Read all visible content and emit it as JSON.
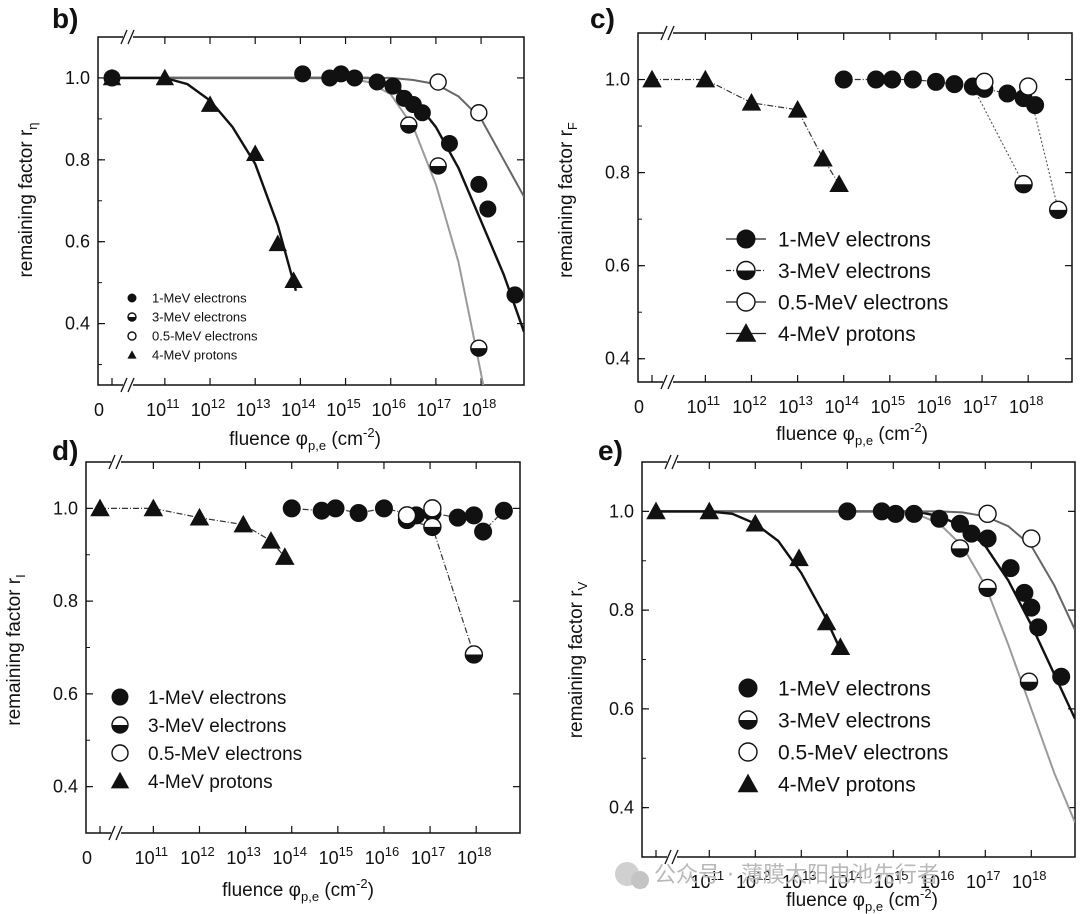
{
  "watermark": "公众号 · 薄膜太阳电池先行者",
  "chart_data": [
    {
      "panel": "b)",
      "type": "scatter",
      "ylabel_main": "remaining factor r",
      "ylabel_sub": "η",
      "xlabel": "fluence φ",
      "xlabel_sub": "p,e",
      "xlabel_unit": "(cm",
      "xlabel_exp": "-2",
      "x_scale": "log with break at 0",
      "xlim_exp": [
        10.45,
        18.95
      ],
      "ylim": [
        0.25,
        1.1
      ],
      "x_ticks": [
        "10",
        "11",
        "12",
        "13",
        "14",
        "15",
        "16",
        "17",
        "18"
      ],
      "y_ticks": [
        "1.0",
        "0.8",
        "0.6",
        "0.4"
      ],
      "y_tick_values": [
        1.0,
        0.8,
        0.6,
        0.4
      ],
      "legend": {
        "position": "bottom-left",
        "entries": [
          "1-MeV electrons",
          "3-MeV electrons",
          "0.5-MeV electrons",
          "4-MeV protons"
        ]
      },
      "series": [
        {
          "marker": "filled-circle",
          "name": "1-MeV electrons",
          "points": [
            [
              0,
              1.0
            ],
            [
              14.05,
              1.01
            ],
            [
              14.65,
              1.0
            ],
            [
              14.9,
              1.01
            ],
            [
              15.2,
              1.0
            ],
            [
              15.7,
              0.99
            ],
            [
              16.05,
              0.98
            ],
            [
              16.3,
              0.95
            ],
            [
              16.5,
              0.935
            ],
            [
              16.7,
              0.915
            ],
            [
              17.3,
              0.84
            ],
            [
              17.95,
              0.74
            ],
            [
              18.15,
              0.68
            ],
            [
              18.75,
              0.47
            ]
          ],
          "fit": [
            [
              15.5,
              1.0
            ],
            [
              16.0,
              0.985
            ],
            [
              16.5,
              0.95
            ],
            [
              17.0,
              0.88
            ],
            [
              17.5,
              0.78
            ],
            [
              18.0,
              0.65
            ],
            [
              18.5,
              0.52
            ],
            [
              18.95,
              0.38
            ]
          ]
        },
        {
          "marker": "half-circle",
          "name": "3-MeV electrons",
          "points": [
            [
              16.4,
              0.885
            ],
            [
              17.05,
              0.785
            ],
            [
              17.95,
              0.34
            ]
          ],
          "fit": [
            [
              15.0,
              1.0
            ],
            [
              15.5,
              0.99
            ],
            [
              16.0,
              0.96
            ],
            [
              16.5,
              0.88
            ],
            [
              17.0,
              0.74
            ],
            [
              17.5,
              0.55
            ],
            [
              17.85,
              0.36
            ],
            [
              18.05,
              0.25
            ]
          ]
        },
        {
          "marker": "open-circle",
          "name": "0.5-MeV electrons",
          "points": [
            [
              17.05,
              0.99
            ],
            [
              17.95,
              0.915
            ]
          ],
          "fit": [
            [
              16.0,
              1.0
            ],
            [
              16.5,
              0.995
            ],
            [
              17.0,
              0.985
            ],
            [
              17.5,
              0.955
            ],
            [
              18.0,
              0.9
            ],
            [
              18.5,
              0.8
            ],
            [
              18.95,
              0.71
            ]
          ]
        },
        {
          "marker": "triangle",
          "name": "4-MeV protons",
          "points": [
            [
              0,
              1.0
            ],
            [
              11.0,
              1.0
            ],
            [
              12.0,
              0.935
            ],
            [
              13.0,
              0.815
            ],
            [
              13.5,
              0.595
            ],
            [
              13.85,
              0.505
            ]
          ],
          "fit": [
            [
              11.0,
              1.0
            ],
            [
              11.5,
              0.985
            ],
            [
              12.0,
              0.945
            ],
            [
              12.5,
              0.88
            ],
            [
              13.0,
              0.79
            ],
            [
              13.5,
              0.64
            ],
            [
              13.9,
              0.48
            ]
          ]
        }
      ]
    },
    {
      "panel": "c)",
      "type": "scatter",
      "ylabel_main": "remaining factor r",
      "ylabel_sub": "F",
      "xlabel": "fluence φ",
      "xlabel_sub": "p,e",
      "xlabel_unit": "(cm",
      "xlabel_exp": "-2",
      "x_scale": "log with break at 0",
      "xlim_exp": [
        10.45,
        18.95
      ],
      "ylim": [
        0.35,
        1.1
      ],
      "x_ticks": [
        "10",
        "11",
        "12",
        "13",
        "14",
        "15",
        "16",
        "17",
        "18"
      ],
      "y_ticks": [
        "1.0",
        "0.8",
        "0.6",
        "0.4"
      ],
      "y_tick_values": [
        1.0,
        0.8,
        0.6,
        0.4
      ],
      "legend": {
        "position": "center-left",
        "entries": [
          "1-MeV electrons",
          "3-MeV electrons",
          "0.5-MeV electrons",
          "4-MeV protons"
        ]
      },
      "series": [
        {
          "marker": "filled-circle",
          "name": "1-MeV electrons",
          "points": [
            [
              14.0,
              1.0
            ],
            [
              14.7,
              1.0
            ],
            [
              15.05,
              1.0
            ],
            [
              15.5,
              1.0
            ],
            [
              16.0,
              0.995
            ],
            [
              16.4,
              0.99
            ],
            [
              16.8,
              0.985
            ],
            [
              17.05,
              0.98
            ],
            [
              17.55,
              0.97
            ],
            [
              17.9,
              0.96
            ],
            [
              18.15,
              0.945
            ]
          ],
          "connect": true
        },
        {
          "marker": "half-circle",
          "name": "3-MeV electrons",
          "points": [
            [
              17.9,
              0.775
            ],
            [
              18.65,
              0.72
            ]
          ],
          "connect": false
        },
        {
          "marker": "open-circle",
          "name": "0.5-MeV electrons",
          "points": [
            [
              17.05,
              0.995
            ],
            [
              18.0,
              0.985
            ]
          ],
          "connect": false
        },
        {
          "marker": "triangle",
          "name": "4-MeV protons",
          "points": [
            [
              0,
              1.0
            ],
            [
              11.0,
              1.0
            ],
            [
              12.0,
              0.95
            ],
            [
              13.0,
              0.935
            ],
            [
              13.55,
              0.83
            ],
            [
              13.9,
              0.775
            ]
          ],
          "connect": true
        },
        {
          "marker": "dotted-line",
          "points": [
            [
              16.8,
              0.985
            ],
            [
              17.9,
              0.775
            ]
          ]
        },
        {
          "marker": "dotted-line",
          "points": [
            [
              18.0,
              0.985
            ],
            [
              18.65,
              0.72
            ]
          ]
        }
      ]
    },
    {
      "panel": "d)",
      "type": "scatter",
      "ylabel_main": "remaining factor r",
      "ylabel_sub": "I",
      "xlabel": "fluence φ",
      "xlabel_sub": "p,e",
      "xlabel_unit": "(cm",
      "xlabel_exp": "-2",
      "x_scale": "log with break at 0",
      "xlim_exp": [
        10.45,
        18.95
      ],
      "ylim": [
        0.3,
        1.1
      ],
      "x_ticks": [
        "10",
        "11",
        "12",
        "13",
        "14",
        "15",
        "16",
        "17",
        "18"
      ],
      "y_ticks": [
        "1.0",
        "0.8",
        "0.6",
        "0.4"
      ],
      "y_tick_values": [
        1.0,
        0.8,
        0.6,
        0.4
      ],
      "legend": {
        "position": "bottom-left",
        "entries": [
          "1-MeV electrons",
          "3-MeV electrons",
          "0.5-MeV electrons",
          "4-MeV protons"
        ]
      },
      "series": [
        {
          "marker": "filled-circle",
          "name": "1-MeV electrons",
          "points": [
            [
              14.0,
              1.0
            ],
            [
              14.65,
              0.995
            ],
            [
              14.95,
              1.0
            ],
            [
              15.45,
              0.99
            ],
            [
              16.0,
              1.0
            ],
            [
              16.7,
              0.985
            ],
            [
              17.05,
              0.99
            ],
            [
              17.6,
              0.98
            ],
            [
              17.95,
              0.985
            ],
            [
              18.15,
              0.95
            ],
            [
              18.6,
              0.995
            ]
          ],
          "connect": true
        },
        {
          "marker": "half-circle",
          "name": "3-MeV electrons",
          "points": [
            [
              16.5,
              0.975
            ],
            [
              17.05,
              0.96
            ],
            [
              17.95,
              0.685
            ]
          ],
          "connect": true
        },
        {
          "marker": "open-circle",
          "name": "0.5-MeV electrons",
          "points": [
            [
              16.5,
              0.985
            ],
            [
              17.05,
              1.0
            ]
          ],
          "connect": false
        },
        {
          "marker": "triangle",
          "name": "4-MeV protons",
          "points": [
            [
              0,
              1.0
            ],
            [
              11.0,
              1.0
            ],
            [
              12.0,
              0.98
            ],
            [
              12.95,
              0.965
            ],
            [
              13.55,
              0.93
            ],
            [
              13.85,
              0.895
            ]
          ],
          "connect": true
        }
      ]
    },
    {
      "panel": "e)",
      "type": "scatter",
      "ylabel_main": "remaining factor r",
      "ylabel_sub": "V",
      "xlabel": "fluence φ",
      "xlabel_sub": "p,e",
      "xlabel_unit": "(cm",
      "xlabel_exp": "-2",
      "x_scale": "log with break at 0",
      "xlim_exp": [
        10.45,
        18.95
      ],
      "ylim": [
        0.3,
        1.1
      ],
      "x_ticks": [
        "10",
        "11",
        "12",
        "13",
        "14",
        "15",
        "16",
        "17",
        "18"
      ],
      "y_ticks": [
        "1.0",
        "0.8",
        "0.6",
        "0.4"
      ],
      "y_tick_values": [
        1.0,
        0.8,
        0.6,
        0.4
      ],
      "legend": {
        "position": "bottom-center",
        "entries": [
          "1-MeV electrons",
          "3-MeV electrons",
          "0.5-MeV electrons",
          "4-MeV protons"
        ]
      },
      "series": [
        {
          "marker": "filled-circle",
          "name": "1-MeV electrons",
          "points": [
            [
              14.0,
              1.0
            ],
            [
              14.75,
              1.0
            ],
            [
              15.05,
              0.995
            ],
            [
              15.45,
              0.995
            ],
            [
              16.0,
              0.985
            ],
            [
              16.45,
              0.975
            ],
            [
              16.7,
              0.955
            ],
            [
              17.05,
              0.945
            ],
            [
              17.55,
              0.885
            ],
            [
              17.85,
              0.835
            ],
            [
              18.0,
              0.805
            ],
            [
              18.15,
              0.765
            ],
            [
              18.65,
              0.665
            ]
          ],
          "fit": [
            [
              15.5,
              1.0
            ],
            [
              16.0,
              0.99
            ],
            [
              16.5,
              0.97
            ],
            [
              17.0,
              0.93
            ],
            [
              17.5,
              0.86
            ],
            [
              18.0,
              0.77
            ],
            [
              18.5,
              0.67
            ],
            [
              18.95,
              0.58
            ]
          ]
        },
        {
          "marker": "half-circle",
          "name": "3-MeV electrons",
          "points": [
            [
              16.45,
              0.925
            ],
            [
              17.05,
              0.845
            ],
            [
              17.95,
              0.655
            ]
          ],
          "fit": [
            [
              15.0,
              1.0
            ],
            [
              15.5,
              0.995
            ],
            [
              16.0,
              0.975
            ],
            [
              16.5,
              0.93
            ],
            [
              17.0,
              0.85
            ],
            [
              17.5,
              0.73
            ],
            [
              18.0,
              0.6
            ],
            [
              18.5,
              0.47
            ],
            [
              18.95,
              0.37
            ]
          ]
        },
        {
          "marker": "open-circle",
          "name": "0.5-MeV electrons",
          "points": [
            [
              17.05,
              0.995
            ],
            [
              18.0,
              0.945
            ]
          ],
          "fit": [
            [
              16.0,
              1.0
            ],
            [
              16.5,
              0.998
            ],
            [
              17.0,
              0.99
            ],
            [
              17.5,
              0.97
            ],
            [
              18.0,
              0.93
            ],
            [
              18.5,
              0.85
            ],
            [
              18.95,
              0.76
            ]
          ]
        },
        {
          "marker": "triangle",
          "name": "4-MeV protons",
          "points": [
            [
              0,
              1.0
            ],
            [
              11.0,
              1.0
            ],
            [
              12.0,
              0.975
            ],
            [
              12.95,
              0.905
            ],
            [
              13.55,
              0.775
            ],
            [
              13.85,
              0.725
            ]
          ],
          "fit": [
            [
              11.0,
              1.0
            ],
            [
              11.5,
              0.995
            ],
            [
              12.0,
              0.975
            ],
            [
              12.5,
              0.94
            ],
            [
              13.0,
              0.875
            ],
            [
              13.5,
              0.79
            ],
            [
              13.9,
              0.71
            ]
          ]
        }
      ]
    }
  ]
}
